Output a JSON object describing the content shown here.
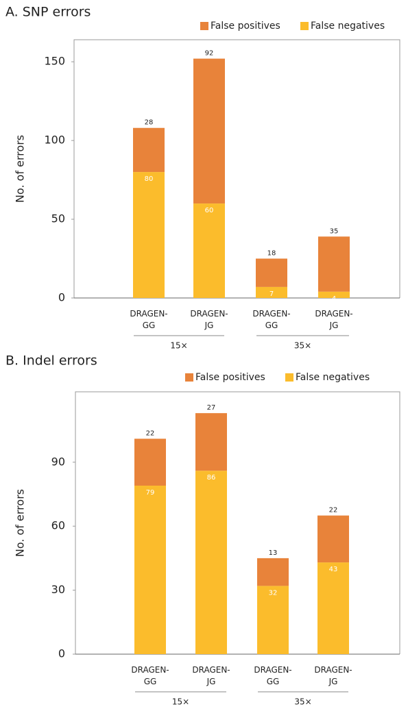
{
  "chart_data": [
    {
      "type": "stacked_bar",
      "title": "A. SNP errors",
      "y_label": "No. of errors",
      "categories": [
        "DRAGEN-GG",
        "DRAGEN-JG",
        "DRAGEN-GG",
        "DRAGEN-JG"
      ],
      "groups": [
        "15×",
        "35×"
      ],
      "series": [
        {
          "name": "False negatives",
          "color": "#fbbc2c",
          "values": [
            80,
            60,
            7,
            4
          ]
        },
        {
          "name": "False positives",
          "color": "#e8833a",
          "values": [
            28,
            92,
            18,
            35
          ]
        }
      ],
      "legend_order": [
        "False positives",
        "False negatives"
      ],
      "ylim": [
        0,
        164
      ],
      "yticks": [
        0,
        50,
        100,
        150
      ]
    },
    {
      "type": "stacked_bar",
      "title": "B. Indel errors",
      "y_label": "No. of errors",
      "categories": [
        "DRAGEN-GG",
        "DRAGEN-JG",
        "DRAGEN-GG",
        "DRAGEN-JG"
      ],
      "groups": [
        "15×",
        "35×"
      ],
      "series": [
        {
          "name": "False negatives",
          "color": "#fbbc2c",
          "values": [
            79,
            86,
            32,
            43
          ]
        },
        {
          "name": "False positives",
          "color": "#e8833a",
          "values": [
            22,
            27,
            13,
            22
          ]
        }
      ],
      "legend_order": [
        "False positives",
        "False negatives"
      ],
      "ylim": [
        0,
        123
      ],
      "yticks": [
        0,
        30,
        60,
        90
      ]
    }
  ]
}
